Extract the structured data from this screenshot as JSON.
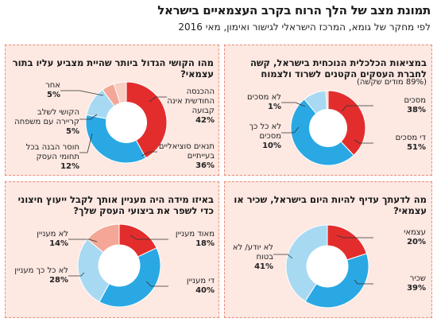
{
  "header": {
    "title": "תמונת מצב של הלך הרוח בקרב העצמאיים בישראל",
    "subtitle": "לפי מחקר של גומא, המרכז הישראלי לגישור ואימון, מאי 2016"
  },
  "colors": {
    "red": "#e32d2d",
    "blue": "#2aa8e3",
    "lightblue": "#a8d9f2",
    "salmon": "#f4a796",
    "pink": "#f9cfc3"
  },
  "chart_data": [
    {
      "type": "pie",
      "title": "במציאות הכלכלית הנוכחית בישראל, קשה לחברת העסקים הקטנים לשרוד ולצמוח",
      "note": "(89% מודים שקשה)",
      "slices": [
        {
          "label": "מסכים",
          "value": 38,
          "pct_text": "38%",
          "color": "#e32d2d"
        },
        {
          "label": "די מסכים",
          "value": 51,
          "pct_text": "51%",
          "color": "#2aa8e3"
        },
        {
          "label": "לא כל כך מסכים",
          "value": 10,
          "pct_text": "10%",
          "color": "#a8d9f2"
        },
        {
          "label": "לא מסכים",
          "value": 1,
          "pct_text": "1%",
          "color": "#f9cfc3"
        }
      ]
    },
    {
      "type": "pie",
      "title": "מהו הקושי הגדול ביותר שהיית מצביע עליו בתור עצמאי?",
      "slices": [
        {
          "label": "ההכנסה החודשית אינה קבועה",
          "value": 42,
          "pct_text": "42%",
          "color": "#e32d2d"
        },
        {
          "label": "תנאים סוציאליים בעייתיים",
          "value": 36,
          "pct_text": "36%",
          "color": "#2aa8e3"
        },
        {
          "label": "חוסר הבנה בכל תחומי העסק",
          "value": 12,
          "pct_text": "12%",
          "color": "#a8d9f2"
        },
        {
          "label": "הקושי לשלב קריירה עם משפחה",
          "value": 5,
          "pct_text": "5%",
          "color": "#f4a796"
        },
        {
          "label": "אחר",
          "value": 5,
          "pct_text": "5%",
          "color": "#f9cfc3"
        }
      ]
    },
    {
      "type": "pie",
      "title": "מה לדעתך עדיף להיות היום בישראל, שכיר או עצמאי?",
      "slices": [
        {
          "label": "עצמאי",
          "value": 20,
          "pct_text": "20%",
          "color": "#e32d2d"
        },
        {
          "label": "שכיר",
          "value": 39,
          "pct_text": "39%",
          "color": "#2aa8e3"
        },
        {
          "label": "לא יודע/ לא בטוח",
          "value": 41,
          "pct_text": "41%",
          "color": "#a8d9f2"
        }
      ]
    },
    {
      "type": "pie",
      "title": "באיזו מידה היה מעניין אותך לקבל ייעוץ חיצוני כדי לשפר את ביצועי העסק שלך?",
      "slices": [
        {
          "label": "מאוד מעניין",
          "value": 18,
          "pct_text": "18%",
          "color": "#e32d2d"
        },
        {
          "label": "די מעניין",
          "value": 40,
          "pct_text": "40%",
          "color": "#2aa8e3"
        },
        {
          "label": "לא כל כך מעניין",
          "value": 28,
          "pct_text": "28%",
          "color": "#a8d9f2"
        },
        {
          "label": "לא מעניין",
          "value": 14,
          "pct_text": "14%",
          "color": "#f4a796"
        }
      ]
    }
  ]
}
